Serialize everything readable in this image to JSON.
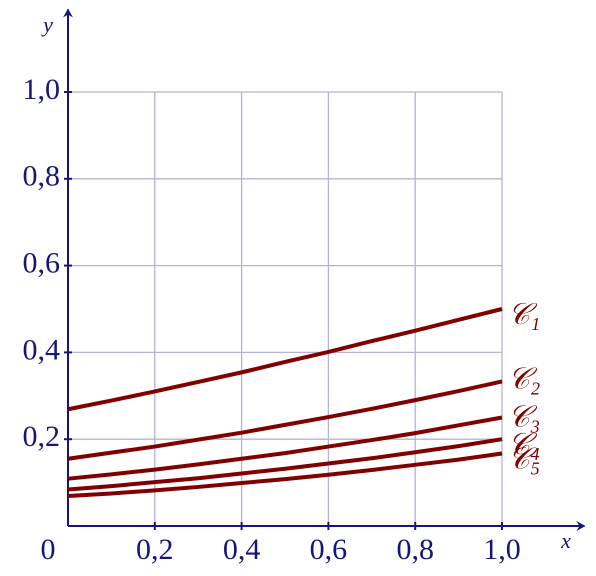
{
  "chart_data": {
    "type": "line",
    "x_label": "x",
    "y_label": "y",
    "x": [
      0,
      0.1,
      0.2,
      0.3,
      0.4,
      0.5,
      0.6,
      0.7,
      0.8,
      0.9,
      1.0
    ],
    "series": [
      {
        "name": "𝒞₁",
        "color": "#800000",
        "values": [
          0.269,
          0.289,
          0.31,
          0.332,
          0.354,
          0.378,
          0.401,
          0.426,
          0.45,
          0.475,
          0.5
        ]
      },
      {
        "name": "𝒞₂",
        "color": "#800000",
        "values": [
          0.155,
          0.169,
          0.183,
          0.199,
          0.215,
          0.233,
          0.251,
          0.27,
          0.29,
          0.311,
          0.333
        ]
      },
      {
        "name": "𝒞₃",
        "color": "#800000",
        "values": [
          0.109,
          0.119,
          0.13,
          0.142,
          0.155,
          0.168,
          0.183,
          0.198,
          0.214,
          0.232,
          0.25
        ]
      },
      {
        "name": "𝒞₄",
        "color": "#800000",
        "values": [
          0.084,
          0.092,
          0.101,
          0.11,
          0.121,
          0.132,
          0.144,
          0.156,
          0.17,
          0.184,
          0.2
        ]
      },
      {
        "name": "𝒞₅",
        "color": "#800000",
        "values": [
          0.069,
          0.075,
          0.082,
          0.09,
          0.099,
          0.108,
          0.118,
          0.129,
          0.141,
          0.153,
          0.167
        ]
      }
    ],
    "xlim": [
      0,
      1.19
    ],
    "ylim": [
      0,
      1.19
    ],
    "xticks": [
      0,
      {
        "value": 0.2,
        "label": "0,2"
      },
      {
        "value": 0.4,
        "label": "0,4"
      },
      {
        "value": 0.6,
        "label": "0,6"
      },
      {
        "value": 0.8,
        "label": "0,8"
      },
      {
        "value": 1.0,
        "label": "1,0"
      }
    ],
    "yticks": [
      {
        "value": 0.2,
        "label": "0,2"
      },
      {
        "value": 0.4,
        "label": "0,4"
      },
      {
        "value": 0.6,
        "label": "0,6"
      },
      {
        "value": 0.8,
        "label": "0,8"
      },
      {
        "value": 1.0,
        "label": "1,0"
      }
    ],
    "grid": true
  }
}
